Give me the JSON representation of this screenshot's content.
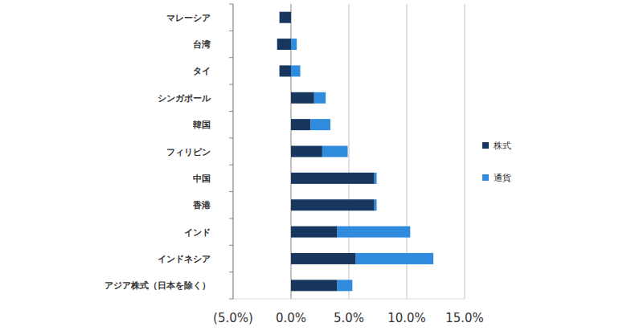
{
  "chart_data": {
    "type": "bar",
    "orientation": "horizontal",
    "stacked": true,
    "grid": true,
    "legend": "right",
    "categories": [
      "マレーシア",
      "台湾",
      "タイ",
      "シンガポール",
      "韓国",
      "フィリピン",
      "中国",
      "香港",
      "インド",
      "インドネシア",
      "アジア株式（日本を除く）"
    ],
    "series": [
      {
        "name": "株式",
        "color": "#17375E",
        "values": [
          -1.0,
          -1.2,
          -1.0,
          2.0,
          1.7,
          2.7,
          7.2,
          7.2,
          4.0,
          5.6,
          4.0
        ]
      },
      {
        "name": "通貨",
        "color": "#2E8BDE",
        "values": [
          0.0,
          0.5,
          0.8,
          1.0,
          1.7,
          2.2,
          0.2,
          0.2,
          6.3,
          6.7,
          1.3
        ]
      }
    ],
    "xlim": [
      -5,
      15
    ],
    "xticks": [
      {
        "value": -5,
        "label": "(5.0%)"
      },
      {
        "value": 0,
        "label": "0.0%"
      },
      {
        "value": 5,
        "label": "5.0%"
      },
      {
        "value": 10,
        "label": "10.0%"
      },
      {
        "value": 15,
        "label": "15.0%"
      }
    ]
  }
}
